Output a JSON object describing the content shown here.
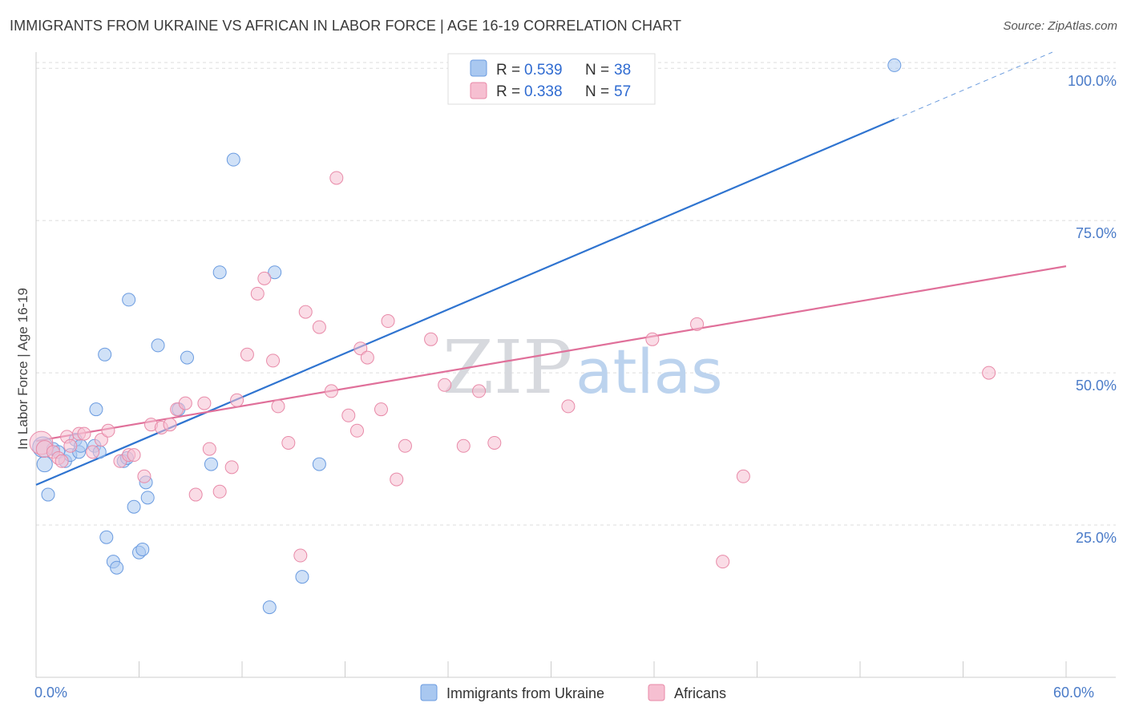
{
  "title": "IMMIGRANTS FROM UKRAINE VS AFRICAN IN LABOR FORCE | AGE 16-19 CORRELATION CHART",
  "source": "Source: ZipAtlas.com",
  "watermark": {
    "zip": "ZIP",
    "atlas": "atlas"
  },
  "colors": {
    "blue_fill": "#a9c8f0",
    "blue_stroke": "#6a9be0",
    "blue_line": "#2f74d0",
    "pink_fill": "#f6bfd1",
    "pink_stroke": "#e88aa8",
    "pink_line": "#e0709a",
    "grid": "#dddddd",
    "axis_text": "#4a7bc8"
  },
  "legend_top": [
    {
      "r_label": "R = ",
      "r_value": "0.539",
      "n_label": "N = ",
      "n_value": "38",
      "color": "blue"
    },
    {
      "r_label": "R = ",
      "r_value": "0.338",
      "n_label": "N = ",
      "n_value": "57",
      "color": "pink"
    }
  ],
  "chart_data": {
    "type": "scatter",
    "title": "IMMIGRANTS FROM UKRAINE VS AFRICAN IN LABOR FORCE | AGE 16-19 CORRELATION CHART",
    "xlabel": "",
    "ylabel": "In Labor Force | Age 16-19",
    "xlim": [
      0,
      60
    ],
    "ylim": [
      0,
      102
    ],
    "x_tick_labels": [
      {
        "value": 0,
        "label": "0.0%"
      },
      {
        "value": 60,
        "label": "60.0%"
      }
    ],
    "y_tick_labels": [
      {
        "value": 25,
        "label": "25.0%"
      },
      {
        "value": 50,
        "label": "50.0%"
      },
      {
        "value": 75,
        "label": "75.0%"
      },
      {
        "value": 100,
        "label": "100.0%"
      }
    ],
    "grid": true,
    "legend_position": "top-center",
    "series": [
      {
        "name": "Immigrants from Ukraine",
        "color": "blue",
        "r": 0.539,
        "n": 38,
        "trend": {
          "x0": 0,
          "y0": 31.6,
          "x1": 60,
          "y1": 103.6,
          "solid_until_x": 50
        },
        "points": [
          [
            0.4,
            37.8,
            1.6
          ],
          [
            0.5,
            35.0,
            1.2
          ],
          [
            0.7,
            30.0,
            1
          ],
          [
            1.0,
            37.5,
            1
          ],
          [
            1.3,
            37.0,
            1
          ],
          [
            1.7,
            35.5,
            1
          ],
          [
            2.0,
            36.5,
            1
          ],
          [
            2.3,
            39.0,
            1
          ],
          [
            2.5,
            37.0,
            1
          ],
          [
            2.6,
            38.0,
            1
          ],
          [
            3.4,
            38.0,
            1
          ],
          [
            3.5,
            44.0,
            1
          ],
          [
            3.7,
            37.0,
            1
          ],
          [
            4.0,
            53.0,
            1
          ],
          [
            4.1,
            23.0,
            1
          ],
          [
            4.5,
            19.0,
            1
          ],
          [
            4.7,
            18.0,
            1
          ],
          [
            5.1,
            35.5,
            1
          ],
          [
            5.3,
            36.0,
            1
          ],
          [
            5.4,
            62.0,
            1
          ],
          [
            5.7,
            28.0,
            1
          ],
          [
            6.0,
            20.5,
            1
          ],
          [
            6.2,
            21.0,
            1
          ],
          [
            6.4,
            32.0,
            1
          ],
          [
            6.5,
            29.5,
            1
          ],
          [
            7.1,
            54.5,
            1
          ],
          [
            8.3,
            44.0,
            1
          ],
          [
            8.8,
            52.5,
            1
          ],
          [
            10.2,
            35.0,
            1
          ],
          [
            10.7,
            66.5,
            1
          ],
          [
            11.5,
            85.0,
            1
          ],
          [
            13.6,
            11.5,
            1
          ],
          [
            13.9,
            66.5,
            1
          ],
          [
            15.5,
            16.5,
            1
          ],
          [
            16.5,
            35.0,
            1
          ],
          [
            50.0,
            100.5,
            1
          ]
        ]
      },
      {
        "name": "Africans",
        "color": "pink",
        "r": 0.338,
        "n": 57,
        "trend": {
          "x0": 0,
          "y0": 38.8,
          "x1": 60,
          "y1": 67.5
        },
        "points": [
          [
            0.3,
            38.5,
            1.8
          ],
          [
            0.5,
            37.5,
            1.3
          ],
          [
            1.0,
            37.0,
            1
          ],
          [
            1.3,
            36.0,
            1
          ],
          [
            1.5,
            35.5,
            1
          ],
          [
            1.8,
            39.5,
            1
          ],
          [
            2.0,
            38.0,
            1
          ],
          [
            2.5,
            40.0,
            1
          ],
          [
            2.8,
            40.0,
            1
          ],
          [
            3.3,
            37.0,
            1
          ],
          [
            3.8,
            39.0,
            1
          ],
          [
            4.2,
            40.5,
            1
          ],
          [
            4.9,
            35.5,
            1
          ],
          [
            5.4,
            36.5,
            1
          ],
          [
            5.7,
            36.5,
            1
          ],
          [
            6.3,
            33.0,
            1
          ],
          [
            6.7,
            41.5,
            1
          ],
          [
            7.3,
            41.0,
            1
          ],
          [
            7.8,
            41.5,
            1
          ],
          [
            8.2,
            44.0,
            1
          ],
          [
            8.7,
            45.0,
            1
          ],
          [
            9.3,
            30.0,
            1
          ],
          [
            9.8,
            45.0,
            1
          ],
          [
            10.1,
            37.5,
            1
          ],
          [
            10.7,
            30.5,
            1
          ],
          [
            11.4,
            34.5,
            1
          ],
          [
            11.7,
            45.5,
            1
          ],
          [
            12.3,
            53.0,
            1
          ],
          [
            12.9,
            63.0,
            1
          ],
          [
            13.3,
            65.5,
            1
          ],
          [
            13.8,
            52.0,
            1
          ],
          [
            14.1,
            44.5,
            1
          ],
          [
            14.7,
            38.5,
            1
          ],
          [
            15.4,
            20.0,
            1
          ],
          [
            15.7,
            60.0,
            1
          ],
          [
            16.5,
            57.5,
            1
          ],
          [
            17.2,
            47.0,
            1
          ],
          [
            18.2,
            43.0,
            1
          ],
          [
            18.7,
            40.5,
            1
          ],
          [
            18.9,
            54.0,
            1
          ],
          [
            19.3,
            52.5,
            1
          ],
          [
            20.1,
            44.0,
            1
          ],
          [
            20.5,
            58.5,
            1
          ],
          [
            21.0,
            32.5,
            1
          ],
          [
            21.5,
            38.0,
            1
          ],
          [
            23.0,
            55.5,
            1
          ],
          [
            23.8,
            48.0,
            1
          ],
          [
            24.9,
            38.0,
            1
          ],
          [
            25.8,
            47.0,
            1
          ],
          [
            26.7,
            38.5,
            1
          ],
          [
            17.5,
            82.0,
            1
          ],
          [
            31.0,
            44.5,
            1
          ],
          [
            35.9,
            55.5,
            1
          ],
          [
            38.5,
            58.0,
            1
          ],
          [
            40.0,
            19.0,
            1
          ],
          [
            41.2,
            33.0,
            1
          ],
          [
            55.5,
            50.0,
            1
          ]
        ]
      }
    ]
  }
}
